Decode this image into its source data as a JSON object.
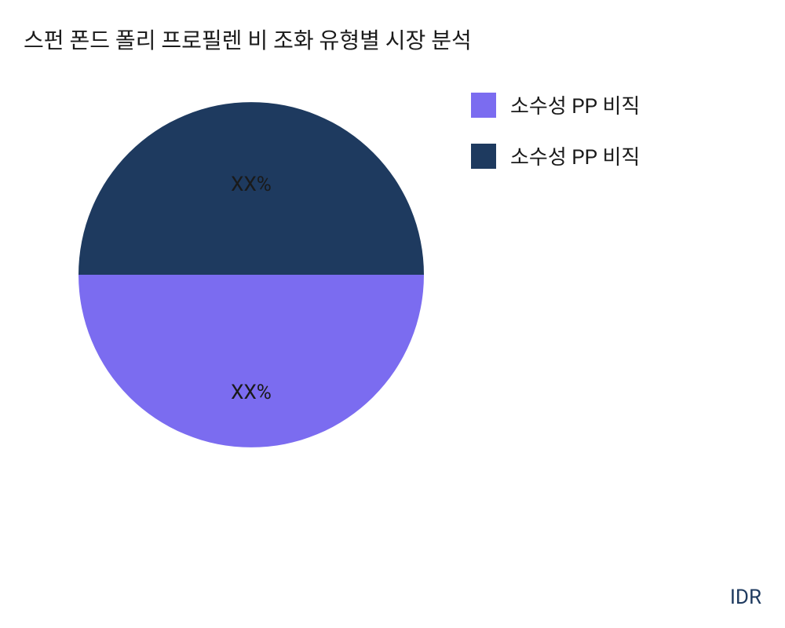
{
  "chart": {
    "type": "pie",
    "title": "스펀 폰드 폴리 프로필렌 비 조화 유형별 시장 분석",
    "title_fontsize": 28,
    "title_color": "#1a1a1a",
    "background_color": "#ffffff",
    "slices": [
      {
        "label": "소수성 PP 비직",
        "value": 50,
        "display_value": "XX%",
        "color": "#1e3a5f",
        "start_angle": 0,
        "end_angle": 180
      },
      {
        "label": "소수성 PP 비직",
        "value": 50,
        "display_value": "XX%",
        "color": "#7b6cf0",
        "start_angle": 180,
        "end_angle": 360
      }
    ],
    "pie_radius": 220,
    "label_fontsize": 26,
    "label_color": "#1a1a1a"
  },
  "legend": {
    "items": [
      {
        "label": "소수성 PP 비직",
        "color": "#7b6cf0"
      },
      {
        "label": "소수성 PP 비직",
        "color": "#1e3a5f"
      }
    ],
    "swatch_size": 32,
    "fontsize": 26,
    "text_color": "#1a1a1a"
  },
  "footer": {
    "text": "IDR",
    "fontsize": 26,
    "color": "#1e3a5f"
  }
}
